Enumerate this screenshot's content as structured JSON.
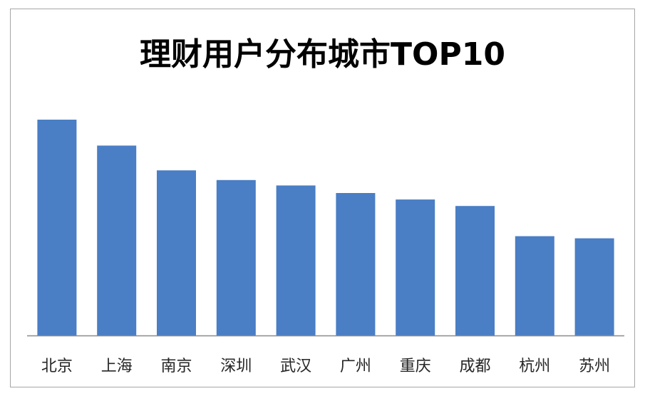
{
  "chart_data": {
    "type": "bar",
    "title": "理财用户分布城市TOP10",
    "xlabel": "",
    "ylabel": "",
    "categories": [
      "北京",
      "上海",
      "南京",
      "深圳",
      "武汉",
      "广州",
      "重庆",
      "成都",
      "杭州",
      "苏州"
    ],
    "values": [
      100,
      88,
      76.5,
      72,
      69.5,
      66,
      63,
      60,
      46,
      45
    ],
    "ylim": [
      0,
      100
    ],
    "grid": false,
    "legend": "none",
    "bar_color": "#4a7ec5",
    "axis_color": "#8c8c8c"
  }
}
